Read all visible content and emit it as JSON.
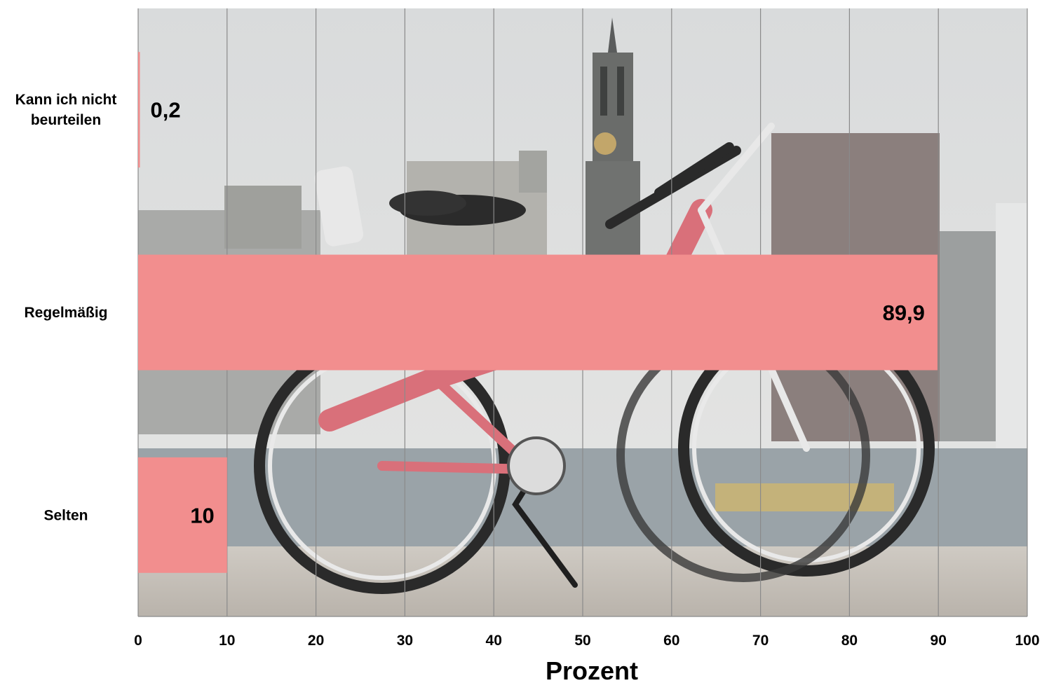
{
  "chart_data": {
    "type": "bar",
    "orientation": "horizontal",
    "categories": [
      "Kann ich nicht beurteilen",
      "Regelmäßig",
      "Selten"
    ],
    "category_lines": [
      [
        "Kann ich nicht",
        "beurteilen"
      ],
      [
        "Regelmäßig"
      ],
      [
        "Selten"
      ]
    ],
    "values": [
      0.2,
      89.9,
      10
    ],
    "value_labels": [
      "0,2",
      "89,9",
      "10"
    ],
    "title": "",
    "xlabel": "Prozent",
    "ylabel": "",
    "xlim": [
      0,
      100
    ],
    "xticks": [
      0,
      10,
      20,
      30,
      40,
      50,
      60,
      70,
      80,
      90,
      100
    ],
    "grid": "vertical",
    "legend": "none",
    "background": "photo of a rental bicycle on a harbour promenade with a clock tower behind",
    "colors": {
      "bar": "#f28e8e",
      "grid": "#8a8a8a",
      "sky": "#dcdedf",
      "bike_frame": "#d9707a",
      "ground": "#c9c4bd",
      "water": "#9aa3a8"
    }
  }
}
